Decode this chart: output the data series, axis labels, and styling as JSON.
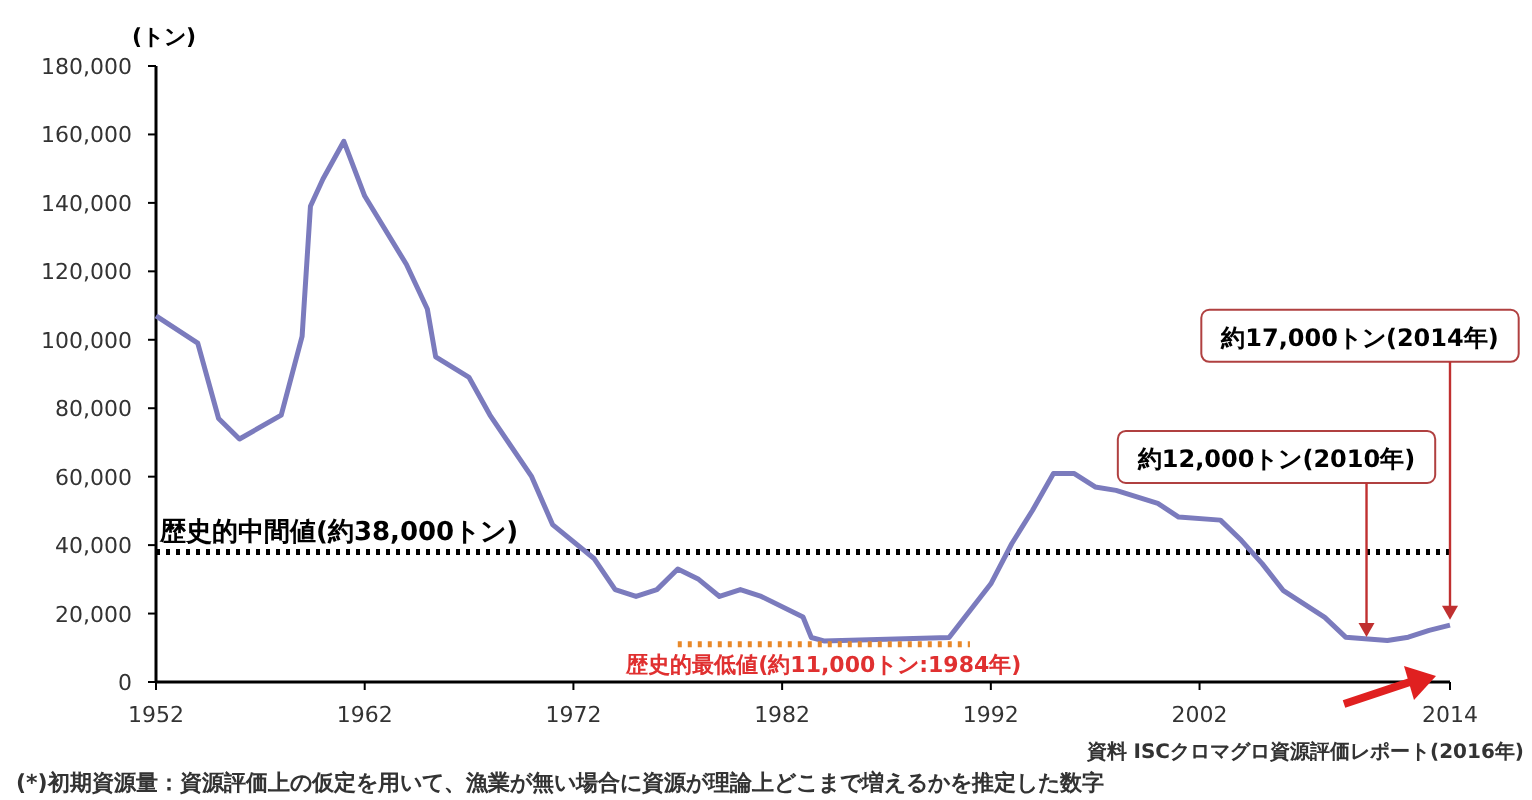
{
  "chart_data": {
    "type": "line",
    "ylabel": "(トン)",
    "x": [
      1952,
      1954,
      1955,
      1956,
      1958,
      1959,
      1959.4,
      1960,
      1961,
      1962,
      1964,
      1965,
      1965.4,
      1967,
      1968,
      1970,
      1971,
      1973,
      1974,
      1975,
      1976,
      1977,
      1978,
      1979,
      1980,
      1981,
      1983,
      1983.4,
      1984,
      1990,
      1992,
      1993,
      1994,
      1995,
      1996,
      1997,
      1998,
      2000,
      2001,
      2003,
      2004,
      2005,
      2006,
      2008,
      2009,
      2011,
      2012,
      2013,
      2014
    ],
    "series": [
      {
        "color": "#7b7bbd",
        "line_style": "solid",
        "values": [
          107000,
          99000,
          77000,
          71000,
          78000,
          101000,
          139000,
          147000,
          158000,
          142000,
          122000,
          109000,
          95000,
          89000,
          78000,
          60000,
          46000,
          36000,
          27000,
          25000,
          27000,
          33000,
          30000,
          25000,
          27000,
          25000,
          19000,
          13000,
          12000,
          13000,
          28700,
          40400,
          50200,
          60900,
          60900,
          57000,
          56000,
          52200,
          48200,
          47300,
          41400,
          34600,
          26800,
          18900,
          13100,
          12100,
          13100,
          15100,
          16600
        ]
      },
      {
        "type": "line",
        "color": "#e8892a",
        "line_style": "dotted",
        "x": [
          1977,
          1991
        ],
        "values": [
          11000,
          11000
        ]
      }
    ],
    "xlim": [
      1952,
      2014
    ],
    "xticks": [
      1952,
      1962,
      1972,
      1982,
      1992,
      2002,
      2014
    ],
    "ylim": [
      0,
      180000
    ],
    "yticks": [
      {
        "value": 0,
        "label": "0"
      },
      {
        "value": 20000,
        "label": "20,000"
      },
      {
        "value": 40000,
        "label": "40,000"
      },
      {
        "value": 60000,
        "label": "60,000"
      },
      {
        "value": 80000,
        "label": "80,000"
      },
      {
        "value": 100000,
        "label": "100,000"
      },
      {
        "value": 120000,
        "label": "120,000"
      },
      {
        "value": 140000,
        "label": "140,000"
      },
      {
        "value": 160000,
        "label": "160,000"
      },
      {
        "value": 180000,
        "label": "180,000"
      }
    ],
    "grid": false,
    "marker": "none",
    "ref_lines": [
      {
        "axis": "y",
        "value": 38000,
        "label": "歴史的中間値(約38,000トン)",
        "color": "#000000",
        "line_style": "dotted"
      }
    ],
    "annotations": [
      {
        "text": "歴史的最低値(約11,000トン:1984年)",
        "x": 1984,
        "y": 11000
      },
      {
        "text": "約12,000トン(2010年)",
        "x": 2010,
        "y": 12000
      },
      {
        "text": "約17,000トン(2014年)",
        "x": 2014,
        "y": 17000
      },
      "資料 ISCクロマグロ資源評価レポート(2016年)",
      "(*)初期資源量：資源評価上の仮定を用いて、漁業が無い場合に資源が理論上どこまで増えるかを推定した数字"
    ]
  }
}
